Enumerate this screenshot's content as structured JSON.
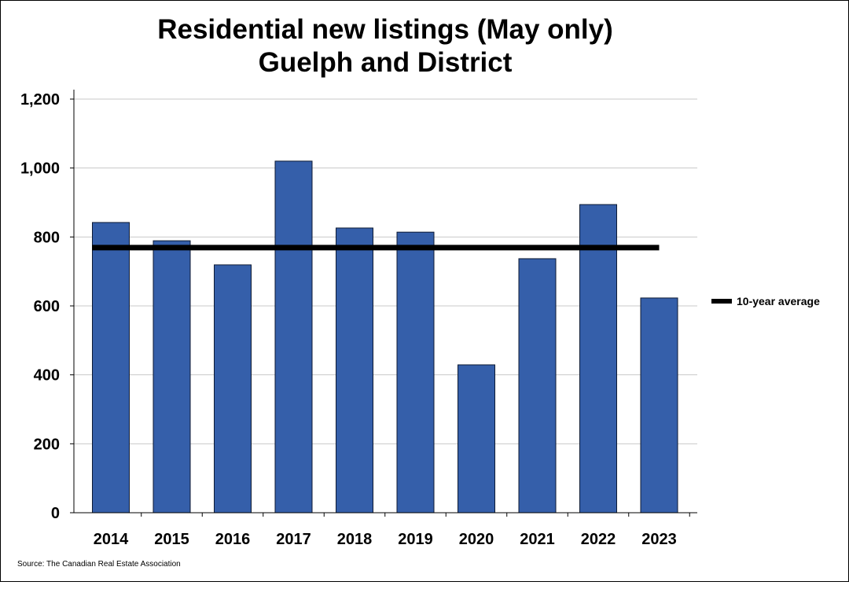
{
  "chart_data": {
    "type": "bar",
    "title": "Residential new listings (May only)",
    "subtitle": "Guelph and District",
    "categories": [
      "2014",
      "2015",
      "2016",
      "2017",
      "2018",
      "2019",
      "2020",
      "2021",
      "2022",
      "2023"
    ],
    "series": [
      {
        "name": "New listings",
        "values": [
          842,
          789,
          719,
          1020,
          826,
          814,
          429,
          737,
          894,
          623
        ],
        "color": "#355FAA"
      },
      {
        "name": "10-year average",
        "type": "line",
        "value": 769,
        "color": "#000000"
      }
    ],
    "yticks": [
      "0",
      "200",
      "400",
      "600",
      "800",
      "1,000",
      "1,200"
    ],
    "ytick_values": [
      0,
      200,
      400,
      600,
      800,
      1000,
      1200
    ],
    "ylim": [
      0,
      1200
    ],
    "xlabel": "",
    "ylabel": "",
    "grid": true,
    "legend": {
      "position": "right",
      "entries": [
        "10-year average"
      ]
    },
    "source": "Source: The Canadian Real Estate Association"
  }
}
